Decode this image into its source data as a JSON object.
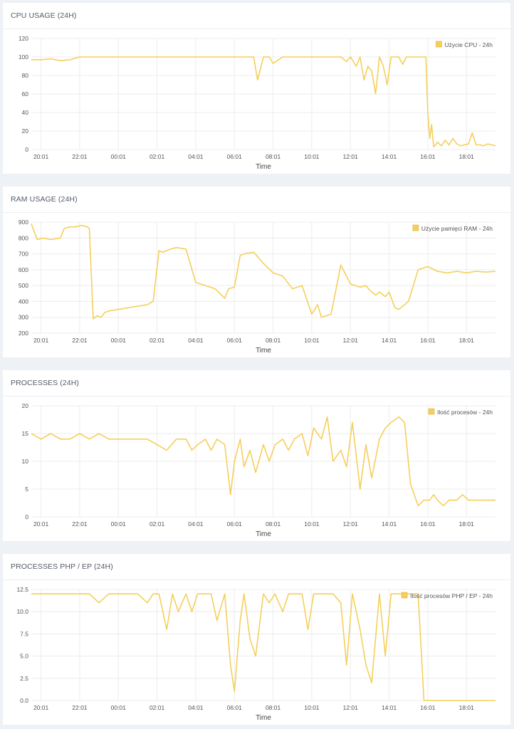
{
  "colors": {
    "series": "#f5cf5b",
    "grid": "#ececec",
    "axis_text": "#555555",
    "background": "#eef1f5"
  },
  "x_ticks": [
    "20:01",
    "22:01",
    "00:01",
    "02:01",
    "04:01",
    "06:01",
    "08:01",
    "10:01",
    "12:01",
    "14:01",
    "16:01",
    "18:01"
  ],
  "chart_data": [
    {
      "type": "line",
      "title": "CPU USAGE (24H)",
      "xlabel": "Time",
      "ylabel": "",
      "ylim": [
        0,
        120
      ],
      "yticks": [
        "0",
        "20",
        "40",
        "60",
        "80",
        "100",
        "120"
      ],
      "legend_position": "top-right",
      "grid": true,
      "series": [
        {
          "name": "Użycie CPU - 24h",
          "x_hours": [
            0,
            0.5,
            1,
            1.5,
            2,
            2.5,
            3,
            3.5,
            4,
            4.5,
            5,
            5.5,
            6,
            6.5,
            7,
            7.5,
            8,
            8.5,
            9,
            9.5,
            10,
            10.5,
            11,
            11.5,
            11.7,
            12,
            12.3,
            12.5,
            13,
            13.5,
            14,
            14.5,
            15,
            15.5,
            16,
            16.3,
            16.5,
            16.8,
            17,
            17.2,
            17.4,
            17.6,
            17.8,
            18,
            18.2,
            18.4,
            18.6,
            18.8,
            19,
            19.2,
            19.4,
            19.6,
            19.8,
            20,
            20.2,
            20.4,
            20.5,
            20.6,
            20.7,
            20.8,
            20.9,
            21,
            21.2,
            21.4,
            21.6,
            21.8,
            22,
            22.2,
            22.4,
            22.6,
            22.8,
            23,
            23.2,
            23.4,
            23.6,
            23.8,
            24
          ],
          "values": [
            97,
            97,
            98,
            96,
            97,
            100,
            100,
            100,
            100,
            100,
            100,
            100,
            100,
            100,
            100,
            100,
            100,
            100,
            100,
            100,
            100,
            100,
            100,
            100,
            75,
            100,
            100,
            93,
            100,
            100,
            100,
            100,
            100,
            100,
            100,
            95,
            100,
            90,
            100,
            75,
            90,
            85,
            60,
            100,
            90,
            70,
            100,
            100,
            100,
            92,
            100,
            100,
            100,
            100,
            100,
            100,
            40,
            12,
            27,
            3,
            5,
            8,
            4,
            10,
            5,
            12,
            6,
            4,
            5,
            6,
            18,
            5,
            5,
            4,
            6,
            5,
            4
          ]
        }
      ]
    },
    {
      "type": "line",
      "title": "RAM USAGE (24H)",
      "xlabel": "Time",
      "ylabel": "",
      "ylim": [
        200,
        900
      ],
      "yticks": [
        "200",
        "300",
        "400",
        "500",
        "600",
        "700",
        "800",
        "900"
      ],
      "legend_position": "top-right",
      "grid": true,
      "series": [
        {
          "name": "Użycie pamięci RAM - 24h",
          "x_hours": [
            0,
            0.3,
            0.6,
            1,
            1.5,
            1.7,
            2,
            2.3,
            2.6,
            2.9,
            3,
            3.2,
            3.4,
            3.6,
            3.8,
            4,
            4.5,
            5,
            5.5,
            6,
            6.3,
            6.6,
            6.8,
            7,
            7.2,
            7.5,
            8,
            8.5,
            9,
            9.5,
            10,
            10.2,
            10.5,
            10.8,
            11,
            11.5,
            12,
            12.5,
            13,
            13.5,
            14,
            14.5,
            14.8,
            15,
            15.5,
            16,
            16.5,
            17,
            17.3,
            17.5,
            17.8,
            18,
            18.3,
            18.5,
            18.8,
            19,
            19.5,
            20,
            20.5,
            21,
            21.5,
            22,
            22.5,
            23,
            23.5,
            24
          ],
          "values": [
            890,
            790,
            800,
            790,
            800,
            860,
            870,
            870,
            880,
            870,
            860,
            290,
            310,
            300,
            330,
            340,
            350,
            360,
            370,
            380,
            400,
            720,
            710,
            720,
            730,
            740,
            730,
            520,
            500,
            480,
            420,
            480,
            490,
            690,
            700,
            710,
            640,
            580,
            560,
            480,
            500,
            320,
            380,
            300,
            320,
            630,
            510,
            490,
            500,
            470,
            440,
            460,
            430,
            460,
            360,
            350,
            400,
            600,
            620,
            590,
            580,
            590,
            580,
            590,
            585,
            590
          ]
        }
      ]
    },
    {
      "type": "line",
      "title": "PROCESSES (24H)",
      "xlabel": "Time",
      "ylabel": "",
      "ylim": [
        0,
        20
      ],
      "yticks": [
        "0",
        "5",
        "10",
        "15",
        "20"
      ],
      "legend_position": "top-right",
      "grid": true,
      "series": [
        {
          "name": "Ilość procesów - 24h",
          "x_hours": [
            0,
            0.5,
            1,
            1.5,
            2,
            2.5,
            3,
            3.5,
            4,
            4.5,
            5,
            5.5,
            6,
            6.5,
            7,
            7.5,
            8,
            8.3,
            8.6,
            9,
            9.3,
            9.6,
            10,
            10.3,
            10.5,
            10.8,
            11,
            11.3,
            11.6,
            12,
            12.3,
            12.6,
            13,
            13.3,
            13.6,
            14,
            14.3,
            14.6,
            15,
            15.3,
            15.6,
            16,
            16.3,
            16.6,
            17,
            17.3,
            17.6,
            18,
            18.3,
            18.6,
            19,
            19.3,
            19.6,
            20,
            20.3,
            20.6,
            20.8,
            21,
            21.3,
            21.6,
            22,
            22.3,
            22.6,
            23,
            23.3,
            23.6,
            24
          ],
          "values": [
            15,
            14,
            15,
            14,
            14,
            15,
            14,
            15,
            14,
            14,
            14,
            14,
            14,
            13,
            12,
            14,
            14,
            12,
            13,
            14,
            12,
            14,
            13,
            4,
            10,
            14,
            9,
            12,
            8,
            13,
            10,
            13,
            14,
            12,
            14,
            15,
            11,
            16,
            14,
            18,
            10,
            12,
            9,
            17,
            5,
            13,
            7,
            14,
            16,
            17,
            18,
            17,
            6,
            2,
            3,
            3,
            4,
            3,
            2,
            3,
            3,
            4,
            3,
            3,
            3,
            3,
            3
          ],
          "x_fix": true
        }
      ]
    },
    {
      "type": "line",
      "title": "PROCESSES PHP / EP (24H)",
      "xlabel": "Time",
      "ylabel": "",
      "ylim": [
        0,
        12.5
      ],
      "yticks": [
        "0.0",
        "2.5",
        "5.0",
        "7.5",
        "10.0",
        "12.5"
      ],
      "legend_position": "top-right",
      "grid": true,
      "series": [
        {
          "name": "Ilość procesów PHP / EP - 24h",
          "x_hours": [
            0,
            0.5,
            1,
            1.5,
            2,
            2.5,
            3,
            3.5,
            4,
            4.5,
            5,
            5.5,
            6,
            6.3,
            6.6,
            7,
            7.3,
            7.6,
            8,
            8.3,
            8.6,
            9,
            9.3,
            9.6,
            10,
            10.3,
            10.5,
            10.8,
            11,
            11.3,
            11.6,
            12,
            12.3,
            12.6,
            13,
            13.3,
            13.6,
            14,
            14.3,
            14.6,
            15,
            15.3,
            15.6,
            16,
            16.3,
            16.6,
            17,
            17.3,
            17.6,
            18,
            18.3,
            18.6,
            19,
            19.3,
            19.6,
            20,
            20.3,
            20.5,
            20.6,
            21,
            21.5,
            22,
            22.5,
            23,
            23.5,
            24
          ],
          "values": [
            12,
            12,
            12,
            12,
            12,
            12,
            12,
            11,
            12,
            12,
            12,
            12,
            11,
            12,
            12,
            8,
            12,
            10,
            12,
            10,
            12,
            12,
            12,
            9,
            12,
            4,
            1,
            9,
            12,
            7,
            5,
            12,
            11,
            12,
            10,
            12,
            12,
            12,
            8,
            12,
            12,
            12,
            12,
            11,
            4,
            12,
            8,
            4,
            2,
            12,
            5,
            12,
            12,
            12,
            12,
            12,
            0,
            0,
            0,
            0,
            0,
            0,
            0,
            0,
            0,
            0
          ]
        }
      ]
    }
  ]
}
